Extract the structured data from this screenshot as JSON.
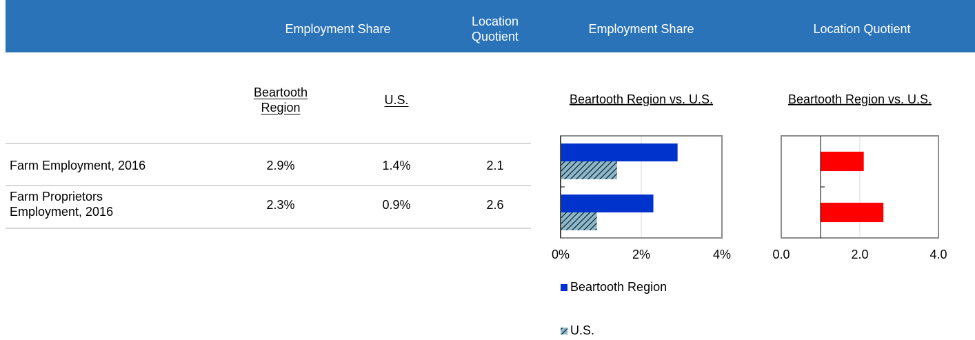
{
  "header": [
    "Employment Share",
    "Location Quotient",
    "Employment Share",
    "Location Quotient"
  ],
  "subheader": [
    "Beartooth Region",
    "U.S."
  ],
  "table": {
    "rows": [
      [
        "Farm Employment, 2016",
        "2.9%",
        "1.4%",
        "2.1"
      ],
      [
        "Farm Proprietors Employment, 2016",
        "2.3%",
        "0.9%",
        "2.6"
      ]
    ]
  },
  "chart_data": [
    {
      "type": "bar",
      "orientation": "horizontal",
      "title": "Beartooth Region vs. U.S.",
      "categories": [
        null,
        null
      ],
      "series": [
        {
          "name": "Beartooth Region",
          "color": "#0033cc",
          "values": [
            2.9,
            2.3
          ]
        },
        {
          "name": "U.S.",
          "color": "#8fb8c8",
          "pattern": "hatch",
          "values": [
            1.4,
            0.9
          ]
        }
      ],
      "xlim": [
        0,
        4
      ],
      "xticks": [
        {
          "value": 0,
          "label": "0%"
        },
        {
          "value": 2,
          "label": "2%"
        },
        {
          "value": 4,
          "label": "4%"
        }
      ],
      "grid": true,
      "legend": "bottom"
    },
    {
      "type": "bar",
      "orientation": "horizontal",
      "title": "Beartooth Region vs. U.S.",
      "categories": [
        null,
        null
      ],
      "series": [
        {
          "color": "#ff0000",
          "values": [
            2.1,
            2.6
          ]
        }
      ],
      "xlim": [
        0,
        4
      ],
      "xticks": [
        {
          "value": 0,
          "label": "0.0"
        },
        {
          "value": 2,
          "label": "2.0"
        },
        {
          "value": 4,
          "label": "4.0"
        }
      ],
      "crosses_at": 1,
      "grid": true
    }
  ]
}
